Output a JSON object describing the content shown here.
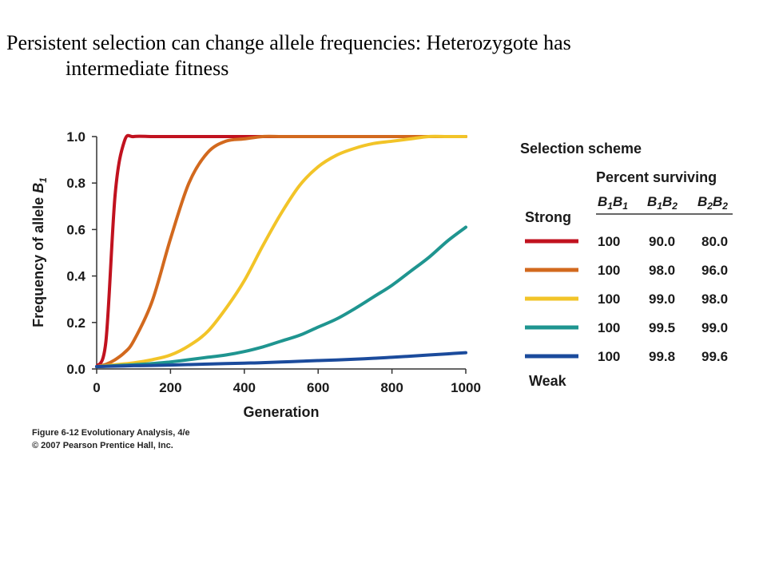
{
  "slide": {
    "title_line1": "Persistent selection can change allele frequencies: Heterozygote has",
    "title_line2": "intermediate fitness"
  },
  "credits": {
    "line1": "Figure 6-12 Evolutionary Analysis, 4/e",
    "line2": "© 2007 Pearson Prentice Hall, Inc."
  },
  "chart_data": {
    "type": "line",
    "xlabel": "Generation",
    "ylabel_text": "Frequency of allele ",
    "ylabel_symbol": "B",
    "ylabel_subscript": "1",
    "xlim": [
      0,
      1000
    ],
    "ylim": [
      0,
      1
    ],
    "x_ticks": [
      "0",
      "200",
      "400",
      "600",
      "800",
      "1000"
    ],
    "y_ticks": [
      "0.0",
      "0.2",
      "0.4",
      "0.6",
      "0.8",
      "1.0"
    ],
    "x": [
      0,
      25,
      50,
      75,
      100,
      150,
      200,
      250,
      300,
      350,
      400,
      450,
      500,
      550,
      600,
      650,
      700,
      750,
      800,
      850,
      900,
      950,
      1000
    ],
    "series": [
      {
        "color": "#c1121f",
        "values": [
          0.01,
          0.12,
          0.75,
          0.98,
          1.0,
          1.0,
          1.0,
          1.0,
          1.0,
          1.0,
          1.0,
          1.0,
          1.0,
          1.0,
          1.0,
          1.0,
          1.0,
          1.0,
          1.0,
          1.0,
          1.0,
          1.0,
          1.0
        ]
      },
      {
        "color": "#d2691e",
        "values": [
          0.01,
          0.02,
          0.04,
          0.07,
          0.12,
          0.29,
          0.56,
          0.8,
          0.93,
          0.98,
          0.99,
          1.0,
          1.0,
          1.0,
          1.0,
          1.0,
          1.0,
          1.0,
          1.0,
          1.0,
          1.0,
          1.0,
          1.0
        ]
      },
      {
        "color": "#f2c428",
        "values": [
          0.01,
          0.014,
          0.018,
          0.022,
          0.026,
          0.04,
          0.06,
          0.1,
          0.16,
          0.26,
          0.38,
          0.53,
          0.67,
          0.79,
          0.87,
          0.92,
          0.95,
          0.97,
          0.98,
          0.99,
          1.0,
          1.0,
          1.0
        ]
      },
      {
        "color": "#1f9590",
        "values": [
          0.01,
          0.012,
          0.014,
          0.016,
          0.018,
          0.023,
          0.03,
          0.04,
          0.05,
          0.06,
          0.075,
          0.095,
          0.12,
          0.145,
          0.18,
          0.215,
          0.26,
          0.31,
          0.36,
          0.42,
          0.48,
          0.55,
          0.61
        ]
      },
      {
        "color": "#1b4b9c",
        "values": [
          0.01,
          0.011,
          0.012,
          0.013,
          0.014,
          0.015,
          0.017,
          0.019,
          0.021,
          0.023,
          0.025,
          0.027,
          0.03,
          0.033,
          0.036,
          0.039,
          0.042,
          0.046,
          0.05,
          0.055,
          0.06,
          0.065,
          0.07
        ]
      }
    ],
    "legend": {
      "title": "Selection scheme",
      "subtitle": "Percent surviving",
      "genotypes": [
        {
          "a": "B",
          "a_sub": "1",
          "b": "B",
          "b_sub": "1"
        },
        {
          "a": "B",
          "a_sub": "1",
          "b": "B",
          "b_sub": "2"
        },
        {
          "a": "B",
          "a_sub": "2",
          "b": "B",
          "b_sub": "2"
        }
      ],
      "top_label": "Strong",
      "bottom_label": "Weak",
      "rows": [
        [
          "100",
          "90.0",
          "80.0"
        ],
        [
          "100",
          "98.0",
          "96.0"
        ],
        [
          "100",
          "99.0",
          "98.0"
        ],
        [
          "100",
          "99.5",
          "99.0"
        ],
        [
          "100",
          "99.8",
          "99.6"
        ]
      ]
    }
  }
}
